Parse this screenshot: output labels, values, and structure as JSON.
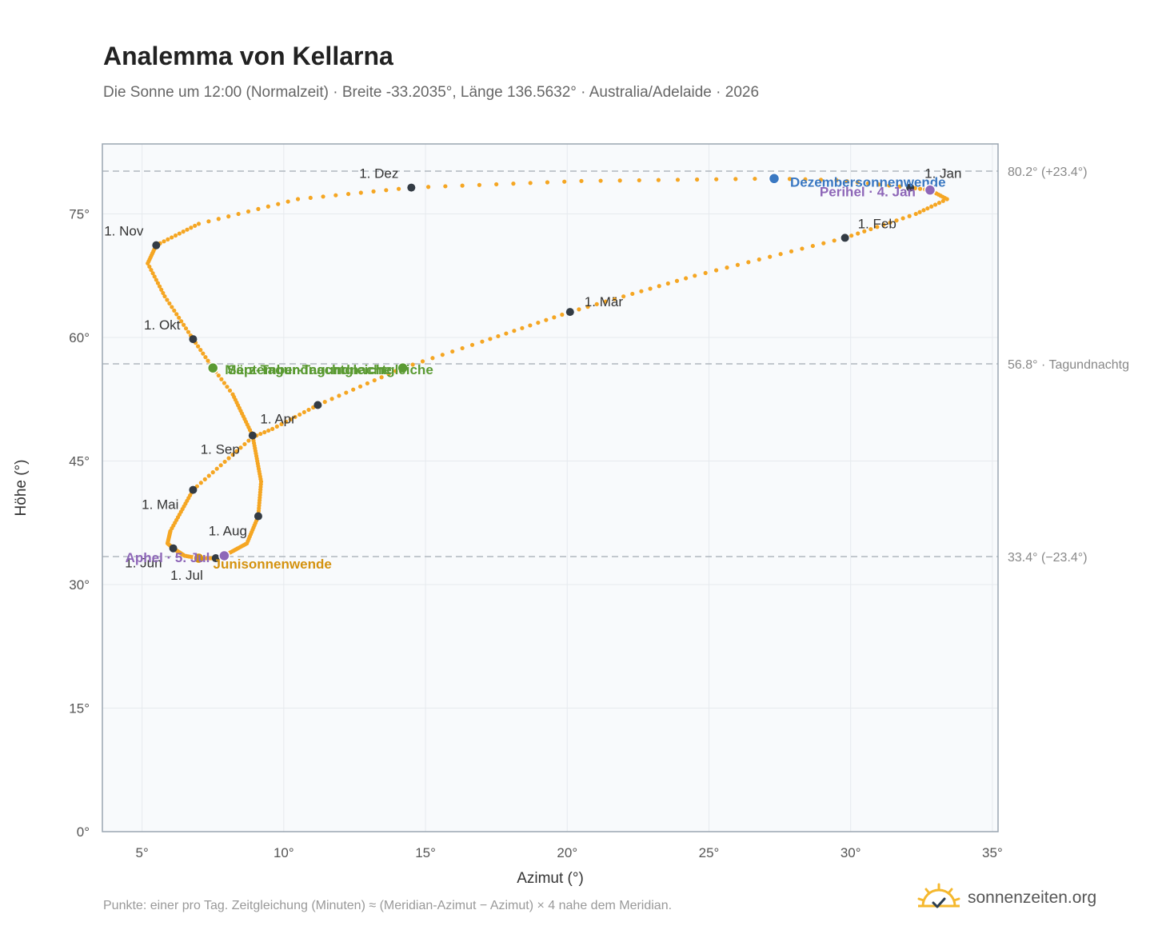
{
  "header": {
    "title": "Analemma von Kellarna",
    "subtitle": "Die Sonne um 12:00 (Normalzeit) · Breite -33.2035°, Länge 136.5632° · Australia/Adelaide · 2026"
  },
  "footer": {
    "note": "Punkte: einer pro Tag. Zeitgleichung (Minuten) ≈ (Meridian-Azimut − Azimut) × 4 nahe dem Meridian.",
    "brand": "sonnenzeiten.org",
    "brand_icon": "sun-icon"
  },
  "colors": {
    "curve": "#F5A623",
    "month_dot": "#333b44",
    "equinox": "#5a9a32",
    "solstice_dec": "#3a78c2",
    "solstice_jun": "#d4920f",
    "perihelion": "#8e67b8",
    "plot_bg": "#f8fafc",
    "grid": "#e6eaee",
    "frame": "#9aa5b1",
    "ref_line": "#b0b8bf"
  },
  "chart_data": {
    "type": "scatter",
    "xlabel": "Azimut (°)",
    "ylabel": "Höhe (°)",
    "xlim": [
      3.6,
      35.2
    ],
    "ylim": [
      0,
      83.5
    ],
    "xticks": [
      5,
      10,
      15,
      20,
      25,
      30,
      35
    ],
    "yticks": [
      0,
      15,
      30,
      45,
      60,
      75
    ],
    "xtick_labels": [
      "5°",
      "10°",
      "15°",
      "20°",
      "25°",
      "30°",
      "35°"
    ],
    "ytick_labels": [
      "0°",
      "15°",
      "30°",
      "45°",
      "60°",
      "75°"
    ],
    "grid": true,
    "reference_lines": [
      {
        "y": 80.2,
        "label": "80.2° (+23.4°)"
      },
      {
        "y": 56.8,
        "label": "56.8° · Tagundnachtg"
      },
      {
        "y": 33.4,
        "label": "33.4° (−23.4°)"
      }
    ],
    "anchors": [
      {
        "day": 0,
        "x": 32.1,
        "y": 78.2
      },
      {
        "day": 4,
        "x": 32.8,
        "y": 77.9
      },
      {
        "day": 12,
        "x": 33.4,
        "y": 76.8
      },
      {
        "day": 20,
        "x": 32.3,
        "y": 75.0
      },
      {
        "day": 31,
        "x": 29.8,
        "y": 72.1
      },
      {
        "day": 45,
        "x": 24.5,
        "y": 67.5
      },
      {
        "day": 59,
        "x": 20.1,
        "y": 63.1
      },
      {
        "day": 70,
        "x": 17.0,
        "y": 59.5
      },
      {
        "day": 78,
        "x": 14.2,
        "y": 56.3
      },
      {
        "day": 90,
        "x": 11.2,
        "y": 51.8
      },
      {
        "day": 100,
        "x": 9.6,
        "y": 48.9
      },
      {
        "day": 105,
        "x": 8.9,
        "y": 47.9
      },
      {
        "day": 120,
        "x": 6.8,
        "y": 41.5
      },
      {
        "day": 135,
        "x": 6.0,
        "y": 36.5
      },
      {
        "day": 145,
        "x": 5.9,
        "y": 35.0
      },
      {
        "day": 151,
        "x": 6.1,
        "y": 34.4
      },
      {
        "day": 165,
        "x": 6.5,
        "y": 33.5
      },
      {
        "day": 172,
        "x": 7.0,
        "y": 33.2
      },
      {
        "day": 181,
        "x": 7.6,
        "y": 33.2
      },
      {
        "day": 186,
        "x": 7.9,
        "y": 33.5
      },
      {
        "day": 200,
        "x": 8.7,
        "y": 35.0
      },
      {
        "day": 212,
        "x": 9.1,
        "y": 38.3
      },
      {
        "day": 225,
        "x": 9.2,
        "y": 42.5
      },
      {
        "day": 243,
        "x": 8.9,
        "y": 48.1
      },
      {
        "day": 258,
        "x": 8.2,
        "y": 53.1
      },
      {
        "day": 265,
        "x": 7.5,
        "y": 56.3
      },
      {
        "day": 273,
        "x": 6.8,
        "y": 59.8
      },
      {
        "day": 285,
        "x": 5.8,
        "y": 65.0
      },
      {
        "day": 295,
        "x": 5.2,
        "y": 69.0
      },
      {
        "day": 304,
        "x": 5.5,
        "y": 71.2
      },
      {
        "day": 315,
        "x": 7.0,
        "y": 73.8
      },
      {
        "day": 325,
        "x": 10.5,
        "y": 76.8
      },
      {
        "day": 334,
        "x": 14.5,
        "y": 78.2
      },
      {
        "day": 344,
        "x": 20.5,
        "y": 79.0
      },
      {
        "day": 354,
        "x": 27.3,
        "y": 79.3
      },
      {
        "day": 358,
        "x": 29.5,
        "y": 79.1
      },
      {
        "day": 365,
        "x": 32.1,
        "y": 78.2
      }
    ],
    "month_markers": [
      {
        "label": "1. Jan",
        "x": 32.1,
        "y": 78.2
      },
      {
        "label": "1. Feb",
        "x": 29.8,
        "y": 72.1
      },
      {
        "label": "1. Mär",
        "x": 20.1,
        "y": 63.1
      },
      {
        "label": "1. Apr",
        "x": 11.2,
        "y": 51.8
      },
      {
        "label": "1. Mai",
        "x": 6.8,
        "y": 41.5
      },
      {
        "label": "1. Jun",
        "x": 6.1,
        "y": 34.4
      },
      {
        "label": "1. Jul",
        "x": 7.6,
        "y": 33.2
      },
      {
        "label": "1. Aug",
        "x": 9.1,
        "y": 38.3
      },
      {
        "label": "1. Sep",
        "x": 8.9,
        "y": 48.1
      },
      {
        "label": "1. Okt",
        "x": 6.8,
        "y": 59.8
      },
      {
        "label": "1. Nov",
        "x": 5.5,
        "y": 71.2
      },
      {
        "label": "1. Dez",
        "x": 14.5,
        "y": 78.2
      }
    ],
    "events": [
      {
        "label": "Dezembersonnenwende",
        "x": 27.3,
        "y": 79.3,
        "color": "#3a78c2"
      },
      {
        "label": "Perihel · 4. Jan",
        "x": 32.8,
        "y": 77.9,
        "color": "#8e67b8"
      },
      {
        "label": "März-Tagundnachtgleiche",
        "x": 14.2,
        "y": 56.3,
        "color": "#5a9a32"
      },
      {
        "label": "September-Tagundnachtgleiche",
        "x": 7.5,
        "y": 56.3,
        "color": "#5a9a32"
      },
      {
        "label": "Junisonnenwende",
        "x": 7.0,
        "y": 33.2,
        "color": "#d4920f"
      },
      {
        "label": "Aphel · 5. Jul",
        "x": 7.9,
        "y": 33.5,
        "color": "#8e67b8"
      }
    ]
  }
}
